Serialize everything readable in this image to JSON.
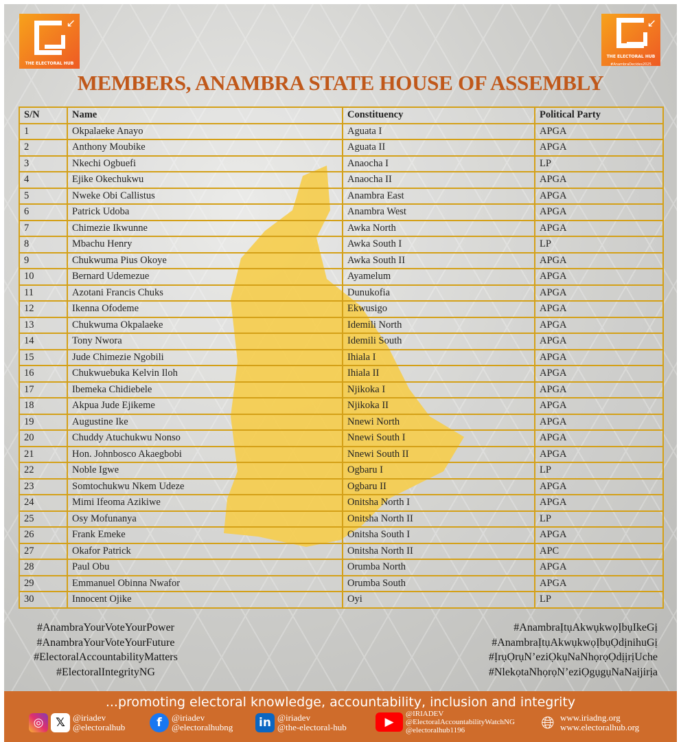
{
  "logos": {
    "left": {
      "text": "THE ELECTORAL HUB"
    },
    "right": {
      "text": "THE ELECTORAL HUB",
      "hashtag": "#AnambraDecides2025"
    }
  },
  "title": "MEMBERS, ANAMBRA STATE HOUSE OF ASSEMBLY",
  "table": {
    "headers": [
      "S/N",
      "Name",
      "Constituency",
      "Political Party"
    ],
    "rows": [
      [
        "1",
        "Okpalaeke Anayo",
        "Aguata I",
        "APGA"
      ],
      [
        "2",
        "Anthony Moubike",
        "Aguata II",
        "APGA"
      ],
      [
        "3",
        "Nkechi Ogbuefi",
        "Anaocha I",
        "LP"
      ],
      [
        "4",
        "Ejike Okechukwu",
        "Anaocha II",
        "APGA"
      ],
      [
        "5",
        "Nweke Obi Callistus",
        "Anambra East",
        "APGA"
      ],
      [
        "6",
        "Patrick Udoba",
        "Anambra West",
        "APGA"
      ],
      [
        "7",
        "Chimezie Ikwunne",
        "Awka North",
        "APGA"
      ],
      [
        "8",
        "Mbachu Henry",
        "Awka South I",
        "LP"
      ],
      [
        "9",
        "Chukwuma Pius Okoye",
        "Awka South II",
        "APGA"
      ],
      [
        "10",
        "Bernard Udemezue",
        "Ayamelum",
        "APGA"
      ],
      [
        "11",
        "Azotani Francis Chuks",
        "Dunukofia",
        "APGA"
      ],
      [
        "12",
        "Ikenna Ofodeme",
        "Ekwusigo",
        "APGA"
      ],
      [
        "13",
        "Chukwuma Okpalaeke",
        "Idemili North",
        "APGA"
      ],
      [
        "14",
        "Tony Nwora",
        "Idemili South",
        "APGA"
      ],
      [
        "15",
        "Jude Chimezie Ngobili",
        "Ihiala I",
        "APGA"
      ],
      [
        "16",
        "Chukwuebuka Kelvin Iloh",
        "Ihiala II",
        "APGA"
      ],
      [
        "17",
        "Ibemeka Chidiebele",
        "Njikoka I",
        "APGA"
      ],
      [
        "18",
        "Akpua Jude Ejikeme",
        "Njikoka II",
        "APGA"
      ],
      [
        "19",
        "Augustine Ike",
        "Nnewi North",
        "APGA"
      ],
      [
        "20",
        "Chuddy Atuchukwu Nonso",
        "Nnewi South I",
        "APGA"
      ],
      [
        "21",
        "Hon. Johnbosco Akaegbobi",
        "Nnewi South II",
        "APGA"
      ],
      [
        "22",
        "Noble Igwe",
        "Ogbaru I",
        "LP"
      ],
      [
        "23",
        "Somtochukwu Nkem Udeze",
        "Ogbaru II",
        "APGA"
      ],
      [
        "24",
        "Mimi Ifeoma Azikiwe",
        "Onitsha North I",
        "APGA"
      ],
      [
        "25",
        "Osy Mofunanya",
        "Onitsha North II",
        "LP"
      ],
      [
        "26",
        "Frank Emeke",
        "Onitsha South I",
        "APGA"
      ],
      [
        "27",
        "Okafor Patrick",
        "Onitsha North II",
        "APC"
      ],
      [
        "28",
        "Paul Obu",
        "Orumba North",
        "APGA"
      ],
      [
        "29",
        "Emmanuel Obinna Nwafor",
        "Orumba South",
        "APGA"
      ],
      [
        "30",
        "Innocent Ojike",
        "Oyi",
        "LP"
      ]
    ]
  },
  "hashtags_left": [
    "#AnambraYourVoteYourPower",
    "#AnambraYourVoteYourFuture",
    "#ElectoralAccountabilityMatters",
    "#ElectoralIntegrityNG"
  ],
  "hashtags_right": [
    "#AnambraỊtụAkwụkwọỊbụIkeGị",
    "#AnambraỊtụAkwụkwọỊbụỌdịnihuGị",
    "#ỊrụỌrụN’eziỌkụNaNhọrọỌdịịrịUche",
    "#NlekọtaNhọrọN’eziỌgụgụNaNaịjirịa"
  ],
  "footer": {
    "slogan": "...promoting electoral knowledge, accountability, inclusion and integrity",
    "socials": [
      {
        "icon": "instagram-x-icons",
        "lines": [
          "@iriadev",
          "@electoralhub"
        ]
      },
      {
        "icon": "facebook-icon",
        "lines": [
          "@iriadev",
          "@electoralhubng"
        ]
      },
      {
        "icon": "linkedin-icon",
        "lines": [
          "@iriadev",
          "@the-electoral-hub"
        ]
      },
      {
        "icon": "youtube-icon",
        "lines": [
          "@IRIADEV",
          "@ElectoralAccountabilityWatchNG",
          "@electoralhub1196"
        ]
      },
      {
        "icon": "globe-icon",
        "lines": [
          "www.iriadng.org",
          "www.electoralhub.org"
        ]
      }
    ]
  },
  "colors": {
    "title": "#c0581a",
    "table_border": "#d4a017",
    "map": "#f5c633",
    "footer": "#cf6c2b"
  }
}
